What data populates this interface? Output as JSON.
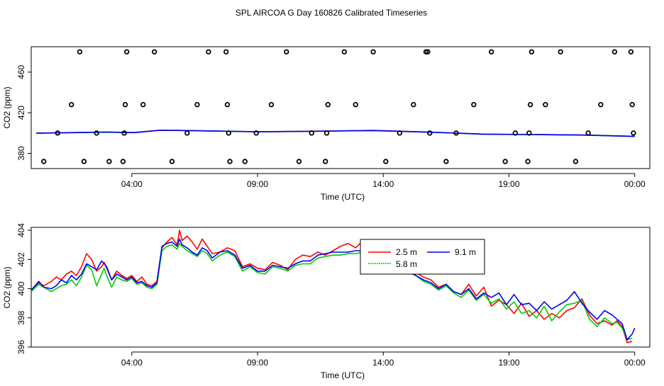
{
  "title": "SPL AIRCOA G  Day 160826  Calibrated Timeseries",
  "chart_data": [
    {
      "type": "scatter+line",
      "xlabel": "Time (UTC)",
      "ylabel": "CO2 (ppm)",
      "xlim": [
        0,
        24.6
      ],
      "ylim": [
        365,
        485
      ],
      "x_ticks": [
        4,
        9,
        14,
        19,
        24
      ],
      "x_tick_labels": [
        "04:00",
        "09:00",
        "14:00",
        "19:00",
        "00:00"
      ],
      "y_ticks": [
        380,
        420,
        460
      ],
      "y_tick_labels": [
        "380",
        "420",
        "460"
      ],
      "calibration_points": {
        "x": [
          0.5,
          1.05,
          1.6,
          1.93,
          2.1,
          2.6,
          3.1,
          3.65,
          3.7,
          3.74,
          3.8,
          4.45,
          4.9,
          5.6,
          6.2,
          6.6,
          7.05,
          7.75,
          7.8,
          7.85,
          7.9,
          8.5,
          8.95,
          9.55,
          10.15,
          10.65,
          11.15,
          11.7,
          11.75,
          11.8,
          12.45,
          12.9,
          13.6,
          14.1,
          14.65,
          15.2,
          15.7,
          15.77,
          15.85,
          16.5,
          16.9,
          17.6,
          18.3,
          18.85,
          19.25,
          19.75,
          19.8,
          19.85,
          19.9,
          20.45,
          21.05,
          21.65,
          22.15,
          22.65,
          23.2,
          23.85,
          23.9,
          23.95
        ],
        "y": [
          372,
          400,
          428,
          480,
          372,
          400,
          372,
          372,
          400,
          428,
          480,
          428,
          480,
          372,
          400,
          428,
          480,
          480,
          428,
          400,
          372,
          372,
          400,
          428,
          480,
          372,
          400,
          372,
          400,
          428,
          480,
          428,
          480,
          372,
          400,
          428,
          480,
          480,
          400,
          372,
          400,
          428,
          480,
          372,
          400,
          372,
          400,
          428,
          480,
          428,
          480,
          372,
          400,
          428,
          480,
          480,
          428,
          400
        ]
      },
      "series": [
        {
          "name": "2.5 m",
          "color": "#ff0000",
          "x": [
            0.2,
            3.0,
            4.1,
            5.1,
            6.2,
            9.0,
            11.0,
            13.6,
            16.0,
            18.0,
            20.0,
            22.0,
            23.5,
            24.0
          ],
          "y": [
            399.9,
            401.0,
            400.5,
            402.8,
            402.5,
            401.3,
            401.8,
            402.6,
            400.8,
            398.9,
            398.5,
            398.0,
            397.0,
            396.7
          ]
        },
        {
          "name": "5.8 m",
          "color": "#00cc00",
          "x": [
            0.2,
            3.0,
            4.1,
            5.1,
            6.2,
            9.0,
            11.0,
            13.6,
            16.0,
            18.0,
            20.0,
            22.0,
            23.5,
            24.0
          ],
          "y": [
            399.8,
            400.8,
            400.4,
            402.7,
            402.4,
            401.2,
            401.6,
            402.4,
            400.7,
            398.8,
            398.4,
            397.9,
            396.9,
            396.6
          ]
        },
        {
          "name": "9.1 m",
          "color": "#0000ff",
          "x": [
            0.2,
            3.0,
            4.1,
            5.1,
            6.2,
            9.0,
            11.0,
            13.6,
            16.0,
            18.0,
            20.0,
            22.0,
            23.5,
            24.0
          ],
          "y": [
            399.8,
            400.9,
            400.4,
            402.7,
            402.5,
            401.2,
            401.7,
            402.5,
            400.7,
            398.9,
            398.5,
            398.0,
            397.0,
            396.7
          ]
        }
      ]
    },
    {
      "type": "line",
      "xlabel": "Time (UTC)",
      "ylabel": "CO2 (ppm)",
      "xlim": [
        0,
        24.6
      ],
      "ylim": [
        396,
        404.2
      ],
      "x_ticks": [
        4,
        9,
        14,
        19,
        24
      ],
      "x_tick_labels": [
        "04:00",
        "09:00",
        "14:00",
        "19:00",
        "00:00"
      ],
      "y_ticks": [
        396,
        398,
        400,
        402,
        404
      ],
      "y_tick_labels": [
        "396",
        "398",
        "400",
        "402",
        "404"
      ],
      "legend": {
        "position": "top-center",
        "entries": [
          "2.5 m",
          "5.8 m",
          "9.1 m"
        ]
      },
      "series": [
        {
          "name": "2.5 m",
          "color": "#ff0000",
          "x": [
            0.0,
            0.3,
            0.5,
            0.8,
            1.0,
            1.2,
            1.4,
            1.6,
            1.8,
            2.0,
            2.2,
            2.4,
            2.6,
            2.8,
            2.9,
            3.0,
            3.2,
            3.4,
            3.6,
            3.8,
            4.0,
            4.2,
            4.4,
            4.6,
            4.8,
            5.0,
            5.2,
            5.4,
            5.6,
            5.8,
            5.9,
            6.0,
            6.2,
            6.4,
            6.6,
            6.8,
            7.0,
            7.2,
            7.5,
            7.8,
            8.1,
            8.4,
            8.7,
            9.0,
            9.3,
            9.6,
            9.9,
            10.2,
            10.5,
            10.8,
            11.1,
            11.4,
            11.7,
            12.0,
            12.3,
            12.6,
            12.9,
            13.2,
            13.5,
            13.8,
            14.1,
            14.4,
            14.7,
            15.0,
            15.3,
            15.6,
            15.9,
            16.2,
            16.5,
            16.8,
            17.1,
            17.4,
            17.7,
            18.0,
            18.3,
            18.6,
            18.9,
            19.2,
            19.5,
            19.8,
            20.1,
            20.4,
            20.7,
            21.0,
            21.3,
            21.6,
            21.9,
            22.2,
            22.5,
            22.8,
            23.1,
            23.3,
            23.5,
            23.7,
            23.9
          ],
          "y": [
            399.9,
            400.4,
            400.2,
            400.5,
            400.8,
            400.6,
            401.0,
            401.2,
            400.9,
            401.5,
            402.4,
            402.0,
            401.2,
            401.5,
            401.8,
            401.4,
            400.6,
            401.2,
            400.9,
            400.7,
            400.9,
            400.5,
            400.8,
            400.3,
            400.2,
            400.5,
            402.8,
            403.2,
            403.5,
            403.0,
            404.0,
            403.3,
            403.6,
            403.2,
            402.7,
            403.4,
            402.9,
            402.4,
            402.5,
            402.8,
            402.6,
            401.5,
            401.7,
            401.4,
            401.3,
            401.8,
            401.6,
            401.3,
            402.0,
            402.3,
            402.2,
            402.5,
            402.3,
            402.6,
            402.9,
            403.1,
            402.8,
            403.3,
            403.0,
            402.4,
            402.7,
            402.0,
            402.2,
            401.4,
            401.1,
            400.8,
            400.6,
            400.1,
            400.3,
            399.8,
            399.6,
            400.3,
            399.5,
            400.1,
            398.8,
            399.2,
            398.9,
            398.3,
            399.0,
            398.1,
            398.5,
            397.9,
            398.3,
            398.0,
            398.5,
            398.7,
            399.3,
            398.2,
            397.6,
            397.8,
            397.5,
            397.8,
            397.4,
            396.3,
            396.4
          ]
        },
        {
          "name": "5.8 m",
          "color": "#00cc00",
          "x": [
            0.0,
            0.3,
            0.5,
            0.8,
            1.0,
            1.2,
            1.4,
            1.6,
            1.8,
            2.0,
            2.2,
            2.4,
            2.6,
            2.8,
            2.9,
            3.0,
            3.2,
            3.4,
            3.6,
            3.8,
            4.0,
            4.2,
            4.4,
            4.6,
            4.8,
            5.0,
            5.2,
            5.4,
            5.6,
            5.8,
            5.9,
            6.0,
            6.2,
            6.4,
            6.6,
            6.8,
            7.0,
            7.2,
            7.5,
            7.8,
            8.1,
            8.4,
            8.7,
            9.0,
            9.3,
            9.6,
            9.9,
            10.2,
            10.5,
            10.8,
            11.1,
            11.4,
            11.7,
            12.0,
            12.3,
            12.6,
            12.9,
            13.2,
            13.5,
            13.8,
            14.1,
            14.4,
            14.7,
            15.0,
            15.3,
            15.6,
            15.9,
            16.2,
            16.5,
            16.8,
            17.1,
            17.4,
            17.7,
            18.0,
            18.3,
            18.6,
            18.9,
            19.2,
            19.5,
            19.8,
            20.1,
            20.4,
            20.7,
            21.0,
            21.3,
            21.6,
            21.9,
            22.2,
            22.5,
            22.8,
            23.1,
            23.3,
            23.5,
            23.7,
            23.9
          ],
          "y": [
            399.8,
            400.3,
            400.1,
            399.8,
            400.0,
            400.2,
            400.3,
            400.6,
            400.2,
            400.8,
            401.6,
            401.3,
            400.2,
            401.0,
            401.4,
            400.9,
            400.1,
            400.8,
            400.6,
            400.5,
            400.7,
            400.3,
            400.4,
            400.1,
            400.0,
            400.3,
            402.6,
            402.9,
            403.0,
            402.7,
            403.1,
            402.9,
            402.6,
            402.4,
            402.2,
            402.6,
            402.4,
            401.9,
            402.3,
            402.5,
            402.2,
            401.2,
            401.5,
            401.1,
            401.0,
            401.5,
            401.4,
            401.2,
            401.6,
            401.7,
            401.7,
            402.1,
            402.2,
            402.3,
            402.3,
            402.4,
            402.4,
            402.5,
            402.4,
            402.6,
            402.2,
            401.8,
            401.5,
            401.1,
            400.9,
            400.5,
            400.3,
            399.9,
            400.2,
            399.7,
            399.4,
            399.9,
            399.2,
            399.6,
            399.0,
            399.3,
            398.6,
            399.1,
            398.3,
            398.5,
            398.0,
            398.8,
            397.8,
            398.4,
            398.9,
            399.0,
            399.2,
            397.9,
            397.4,
            398.0,
            397.6,
            397.7,
            397.3,
            396.5,
            396.6
          ]
        },
        {
          "name": "9.1 m",
          "color": "#0000ff",
          "x": [
            0.0,
            0.3,
            0.5,
            0.8,
            1.0,
            1.2,
            1.4,
            1.6,
            1.8,
            2.0,
            2.2,
            2.4,
            2.6,
            2.8,
            2.9,
            3.0,
            3.2,
            3.4,
            3.6,
            3.8,
            4.0,
            4.2,
            4.4,
            4.6,
            4.8,
            5.0,
            5.2,
            5.4,
            5.6,
            5.8,
            5.9,
            6.0,
            6.2,
            6.4,
            6.6,
            6.8,
            7.0,
            7.2,
            7.5,
            7.8,
            8.1,
            8.4,
            8.7,
            9.0,
            9.3,
            9.6,
            9.9,
            10.2,
            10.5,
            10.8,
            11.1,
            11.4,
            11.7,
            12.0,
            12.3,
            12.6,
            12.9,
            13.2,
            13.5,
            13.8,
            14.1,
            14.4,
            14.7,
            15.0,
            15.3,
            15.6,
            15.9,
            16.2,
            16.5,
            16.8,
            17.1,
            17.4,
            17.7,
            18.0,
            18.3,
            18.6,
            18.9,
            19.2,
            19.5,
            19.8,
            20.1,
            20.4,
            20.7,
            21.0,
            21.3,
            21.6,
            21.9,
            22.2,
            22.5,
            22.8,
            23.1,
            23.3,
            23.5,
            23.7,
            23.9,
            24.0
          ],
          "y": [
            399.9,
            400.5,
            400.1,
            400.0,
            400.2,
            400.6,
            400.4,
            400.9,
            400.6,
            401.0,
            401.7,
            401.5,
            401.3,
            401.9,
            401.7,
            401.5,
            400.6,
            401.0,
            400.8,
            400.6,
            400.8,
            400.4,
            400.5,
            400.2,
            400.1,
            400.4,
            402.9,
            403.1,
            403.2,
            402.9,
            403.4,
            403.0,
            402.8,
            402.5,
            402.3,
            402.8,
            402.6,
            402.1,
            402.5,
            402.6,
            402.3,
            401.4,
            401.6,
            401.2,
            401.2,
            401.6,
            401.5,
            401.4,
            401.7,
            401.9,
            401.9,
            402.3,
            402.4,
            402.5,
            402.5,
            402.5,
            402.6,
            402.6,
            402.7,
            402.8,
            402.5,
            401.9,
            401.7,
            401.2,
            400.9,
            400.6,
            400.4,
            400.0,
            400.3,
            399.8,
            399.6,
            400.0,
            399.3,
            399.7,
            399.4,
            399.7,
            398.9,
            399.6,
            398.9,
            399.0,
            398.5,
            399.1,
            398.6,
            398.9,
            399.2,
            399.8,
            399.0,
            398.4,
            397.9,
            398.5,
            398.2,
            397.9,
            397.6,
            396.5,
            396.9,
            397.3
          ]
        }
      ]
    }
  ]
}
